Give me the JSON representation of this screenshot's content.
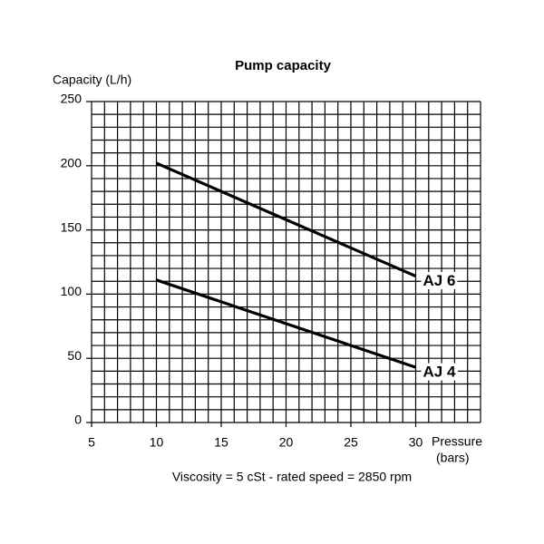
{
  "chart_data": {
    "type": "line",
    "title": "Pump capacity",
    "ylabel": "Capacity (L/h)",
    "xlabel": [
      "Pressure",
      "(bars)"
    ],
    "note": "Viscosity = 5 cSt  -  rated speed = 2850 rpm",
    "xlim": [
      5,
      35
    ],
    "xticks": [
      5,
      10,
      15,
      20,
      25,
      30
    ],
    "ylim": [
      0,
      250
    ],
    "yticks": [
      0,
      50,
      100,
      150,
      200,
      250
    ],
    "grid": true,
    "minor_grid": {
      "x": 1,
      "y": 10
    },
    "series": [
      {
        "name": "AJ 6",
        "color": "#000000",
        "x": [
          10,
          30
        ],
        "values": [
          202,
          114
        ]
      },
      {
        "name": "AJ 4",
        "color": "#000000",
        "x": [
          10,
          30
        ],
        "values": [
          111,
          43
        ]
      }
    ]
  }
}
